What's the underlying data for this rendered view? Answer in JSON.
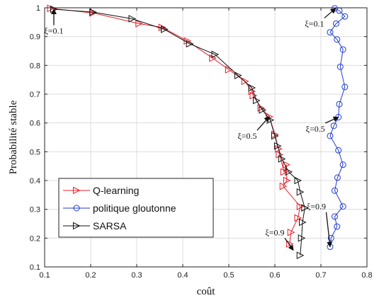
{
  "chart_data": {
    "type": "line",
    "xlabel": "coût",
    "ylabel": "Probabilité stable",
    "xlim": [
      0.1,
      0.8
    ],
    "ylim": [
      0.1,
      1.0
    ],
    "xticks": [
      "0.1",
      "0.2",
      "0.3",
      "0.4",
      "0.5",
      "0.6",
      "0.7",
      "0.8"
    ],
    "yticks": [
      "0.1",
      "0.2",
      "0.3",
      "0.4",
      "0.5",
      "0.6",
      "0.7",
      "0.8",
      "0.9",
      "1"
    ],
    "grid": true,
    "legend_position": "bottom-left",
    "series": [
      {
        "name": "Q-learning",
        "color": "#e8202a",
        "marker": "triangle-right",
        "points": [
          [
            0.113,
            0.998
          ],
          [
            0.205,
            0.982
          ],
          [
            0.305,
            0.945
          ],
          [
            0.355,
            0.932
          ],
          [
            0.41,
            0.885
          ],
          [
            0.465,
            0.825
          ],
          [
            0.5,
            0.785
          ],
          [
            0.535,
            0.745
          ],
          [
            0.55,
            0.71
          ],
          [
            0.553,
            0.695
          ],
          [
            0.57,
            0.652
          ],
          [
            0.588,
            0.622
          ],
          [
            0.6,
            0.56
          ],
          [
            0.608,
            0.51
          ],
          [
            0.61,
            0.49
          ],
          [
            0.62,
            0.43
          ],
          [
            0.625,
            0.455
          ],
          [
            0.626,
            0.4
          ],
          [
            0.618,
            0.38
          ],
          [
            0.655,
            0.31
          ],
          [
            0.65,
            0.27
          ],
          [
            0.635,
            0.22
          ],
          [
            0.632,
            0.18
          ]
        ]
      },
      {
        "name": "politique gloutonne",
        "color": "#1f3bd1",
        "marker": "circle",
        "points": [
          [
            0.73,
            0.998
          ],
          [
            0.74,
            0.99
          ],
          [
            0.752,
            0.97
          ],
          [
            0.733,
            0.945
          ],
          [
            0.72,
            0.915
          ],
          [
            0.735,
            0.89
          ],
          [
            0.748,
            0.855
          ],
          [
            0.742,
            0.795
          ],
          [
            0.752,
            0.725
          ],
          [
            0.74,
            0.665
          ],
          [
            0.738,
            0.62
          ],
          [
            0.728,
            0.59
          ],
          [
            0.72,
            0.555
          ],
          [
            0.738,
            0.505
          ],
          [
            0.748,
            0.455
          ],
          [
            0.736,
            0.41
          ],
          [
            0.73,
            0.365
          ],
          [
            0.748,
            0.31
          ],
          [
            0.73,
            0.275
          ],
          [
            0.735,
            0.24
          ],
          [
            0.722,
            0.2
          ],
          [
            0.72,
            0.17
          ]
        ]
      },
      {
        "name": "SARSA",
        "color": "#111111",
        "marker": "triangle-right",
        "points": [
          [
            0.12,
            0.995
          ],
          [
            0.205,
            0.985
          ],
          [
            0.29,
            0.962
          ],
          [
            0.36,
            0.925
          ],
          [
            0.415,
            0.875
          ],
          [
            0.47,
            0.838
          ],
          [
            0.52,
            0.765
          ],
          [
            0.55,
            0.722
          ],
          [
            0.56,
            0.678
          ],
          [
            0.573,
            0.645
          ],
          [
            0.59,
            0.61
          ],
          [
            0.6,
            0.555
          ],
          [
            0.606,
            0.52
          ],
          [
            0.615,
            0.475
          ],
          [
            0.63,
            0.43
          ],
          [
            0.65,
            0.4
          ],
          [
            0.655,
            0.36
          ],
          [
            0.665,
            0.305
          ],
          [
            0.66,
            0.255
          ],
          [
            0.658,
            0.2
          ],
          [
            0.655,
            0.14
          ]
        ]
      }
    ],
    "annotations": [
      {
        "text": "ξ=0.1",
        "x": 0.12,
        "y": 0.91,
        "ax": 0.12,
        "ay": 0.995
      },
      {
        "text": "ξ=0.5",
        "x": 0.54,
        "y": 0.545,
        "ax": 0.588,
        "ay": 0.622
      },
      {
        "text": "ξ=0.9",
        "x": 0.6,
        "y": 0.21,
        "ax": 0.64,
        "ay": 0.158
      },
      {
        "text": "ξ=0.1",
        "x": 0.686,
        "y": 0.935,
        "ax": 0.732,
        "ay": 0.998
      },
      {
        "text": "ξ=0.5",
        "x": 0.688,
        "y": 0.57,
        "ax": 0.738,
        "ay": 0.62
      },
      {
        "text": "ξ=0.9",
        "x": 0.69,
        "y": 0.3,
        "ax": 0.72,
        "ay": 0.17
      }
    ]
  }
}
